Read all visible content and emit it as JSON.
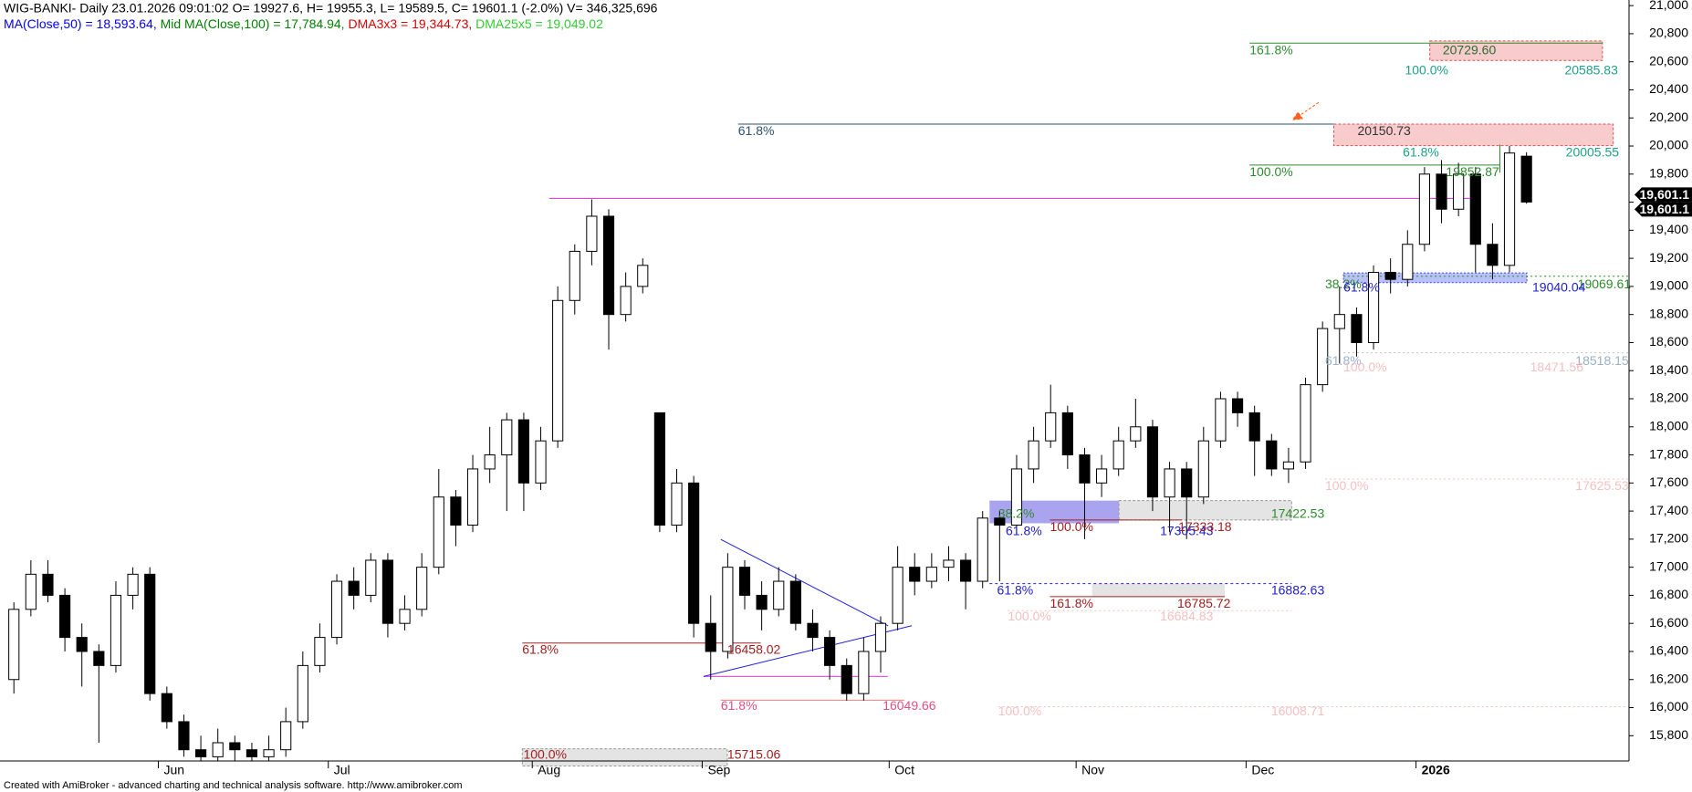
{
  "header": {
    "line1": "WIG-BANKI- Daily 23.01.2026 09:01:02 O= 19927.6, H= 19955.3, L= 19589.5, C= 19601.1 (-2.0%) V= 346,325,696",
    "indicators": [
      {
        "text": "MA(Close,50) = 18,593.64, ",
        "color": "#0000ff"
      },
      {
        "text": "Mid MA(Close,100) = 17,784.94, ",
        "color": "#008000"
      },
      {
        "text": "DMA3x3 = 19,344.73, ",
        "color": "#e00000"
      },
      {
        "text": "DMA25x5 = 19,049.02",
        "color": "#33cc33"
      }
    ]
  },
  "chart_data": {
    "type": "candlestick",
    "categories": [
      null,
      null,
      null,
      null,
      null,
      null,
      null,
      null,
      null,
      "Jun",
      null,
      null,
      null,
      null,
      null,
      null,
      null,
      null,
      null,
      "Jul",
      null,
      null,
      null,
      null,
      null,
      null,
      null,
      null,
      null,
      null,
      null,
      "Aug",
      null,
      null,
      null,
      null,
      null,
      null,
      null,
      null,
      null,
      "Sep",
      null,
      null,
      null,
      null,
      null,
      null,
      null,
      null,
      null,
      null,
      "Oct",
      null,
      null,
      null,
      null,
      null,
      null,
      null,
      null,
      null,
      null,
      "Nov",
      null,
      null,
      null,
      null,
      null,
      null,
      null,
      null,
      null,
      "Dec",
      null,
      null,
      null,
      null,
      null,
      null,
      null,
      null,
      null,
      "2026",
      null,
      null,
      null,
      null,
      null,
      null
    ],
    "open": [
      16200,
      16700,
      16950,
      16800,
      16500,
      16400,
      16300,
      16800,
      16950,
      16100,
      15900,
      15700,
      15650,
      15750,
      15700,
      15650,
      15700,
      15900,
      16300,
      16500,
      16900,
      16800,
      17050,
      16600,
      16700,
      17000,
      17500,
      17300,
      17700,
      17800,
      18050,
      17600,
      17900,
      18900,
      19250,
      19500,
      18800,
      19000,
      18100,
      17300,
      17600,
      16600,
      16400,
      17000,
      16800,
      16700,
      16900,
      16600,
      16500,
      16300,
      16100,
      16400,
      16600,
      17000,
      16900,
      17000,
      17050,
      16900,
      17350,
      17300,
      17700,
      17900,
      18100,
      17800,
      17600,
      17700,
      17900,
      18000,
      17500,
      17700,
      17500,
      17900,
      18200,
      18100,
      17900,
      17700,
      17750,
      18300,
      18700,
      18800,
      18600,
      19100,
      19050,
      19300,
      19800,
      19550,
      19800,
      19300,
      19150,
      19927.6
    ],
    "high": [
      16750,
      17050,
      17050,
      16850,
      16600,
      16450,
      16900,
      17000,
      17000,
      16150,
      15950,
      15800,
      15850,
      15800,
      15750,
      15800,
      16000,
      16400,
      16600,
      16950,
      17000,
      17100,
      17100,
      16800,
      17100,
      17700,
      17550,
      17800,
      18000,
      18100,
      18100,
      18000,
      19000,
      19300,
      19620,
      19550,
      19100,
      19200,
      18100,
      17700,
      17650,
      16800,
      17100,
      17050,
      16900,
      17000,
      16950,
      16700,
      16550,
      16350,
      16500,
      16650,
      17150,
      17100,
      17100,
      17150,
      17100,
      17400,
      17400,
      17800,
      18000,
      18300,
      18150,
      17850,
      17800,
      18000,
      18200,
      18050,
      17750,
      17750,
      18000,
      18250,
      18250,
      18150,
      17950,
      17850,
      18350,
      18750,
      19000,
      18850,
      19150,
      19200,
      19400,
      19850,
      19900,
      19880,
      19850,
      19450,
      20000,
      19955.3
    ],
    "low": [
      16100,
      16650,
      16750,
      16400,
      16150,
      15750,
      16250,
      16700,
      16050,
      15850,
      15650,
      15620,
      15620,
      15620,
      15620,
      15620,
      15650,
      15850,
      16250,
      16450,
      16700,
      16750,
      16500,
      16550,
      16650,
      16950,
      17150,
      17250,
      17600,
      17400,
      17400,
      17550,
      17850,
      18800,
      19150,
      18550,
      18750,
      18950,
      17250,
      17250,
      16500,
      16200,
      16350,
      16700,
      16550,
      16650,
      16550,
      16400,
      16200,
      16050,
      16050,
      16250,
      16550,
      16800,
      16850,
      16900,
      16700,
      16850,
      16900,
      17250,
      17600,
      17850,
      17700,
      17200,
      17500,
      17650,
      17850,
      17400,
      17250,
      17200,
      17450,
      17850,
      18000,
      17650,
      17650,
      17600,
      17700,
      18250,
      18450,
      18500,
      18550,
      18950,
      19000,
      19250,
      19450,
      19500,
      19100,
      19050,
      19100,
      19589.5
    ],
    "close": [
      16700,
      16950,
      16800,
      16500,
      16400,
      16300,
      16800,
      16950,
      16100,
      15900,
      15700,
      15650,
      15750,
      15700,
      15650,
      15700,
      15900,
      16300,
      16500,
      16900,
      16800,
      17050,
      16600,
      16700,
      17000,
      17500,
      17300,
      17700,
      17800,
      18050,
      17600,
      17900,
      18900,
      19250,
      19500,
      18800,
      19000,
      19150,
      17300,
      17600,
      16600,
      16400,
      17000,
      16800,
      16700,
      16900,
      16600,
      16500,
      16300,
      16100,
      16400,
      16600,
      17000,
      16900,
      17000,
      17050,
      16900,
      17350,
      17300,
      17700,
      17900,
      18100,
      17800,
      17600,
      17700,
      17900,
      18000,
      17500,
      17700,
      17500,
      17900,
      18200,
      18100,
      17900,
      17700,
      17750,
      18300,
      18700,
      18800,
      18600,
      19100,
      19050,
      19300,
      19800,
      19550,
      19800,
      19300,
      19150,
      19950,
      19601.1
    ],
    "ylim": [
      15620,
      21040
    ],
    "yticks": [
      {
        "value": 15800,
        "label": "15,800"
      },
      {
        "value": 16000,
        "label": "16,000"
      },
      {
        "value": 16200,
        "label": "16,200"
      },
      {
        "value": 16400,
        "label": "16,400"
      },
      {
        "value": 16600,
        "label": "16,600"
      },
      {
        "value": 16800,
        "label": "16,800"
      },
      {
        "value": 17000,
        "label": "17,000"
      },
      {
        "value": 17200,
        "label": "17,200"
      },
      {
        "value": 17400,
        "label": "17,400"
      },
      {
        "value": 17600,
        "label": "17,600"
      },
      {
        "value": 17800,
        "label": "17,800"
      },
      {
        "value": 18000,
        "label": "18,000"
      },
      {
        "value": 18200,
        "label": "18,200"
      },
      {
        "value": 18400,
        "label": "18,400"
      },
      {
        "value": 18600,
        "label": "18,600"
      },
      {
        "value": 18800,
        "label": "18,800"
      },
      {
        "value": 19000,
        "label": "19,000"
      },
      {
        "value": 19200,
        "label": "19,200"
      },
      {
        "value": 19400,
        "label": "19,400"
      },
      {
        "value": 19600,
        "label": "19,600"
      },
      {
        "value": 19800,
        "label": "19,800"
      },
      {
        "value": 20000,
        "label": "20,000"
      },
      {
        "value": 20200,
        "label": "20,200"
      },
      {
        "value": 20400,
        "label": "20,400"
      },
      {
        "value": 20600,
        "label": "20,600"
      },
      {
        "value": 20800,
        "label": "20,800"
      },
      {
        "value": 21000,
        "label": "21,000"
      }
    ],
    "last_price_labels": [
      {
        "value": 19601.1,
        "label": "19,601.1"
      },
      {
        "value": 19601.1,
        "label": "19,601.1"
      }
    ],
    "annotations": [
      {
        "text": "161.8%",
        "color": "#2e8b2e"
      },
      {
        "text": "20729.60",
        "color": "#2e6b2e"
      },
      {
        "text": "100.0%",
        "color": "#20a08a"
      },
      {
        "text": "20585.83",
        "color": "#20a08a"
      },
      {
        "text": "61.8%",
        "color": "#2f4f6f"
      },
      {
        "text": "20150.73",
        "color": "#333333"
      },
      {
        "text": "61.8%",
        "color": "#20a08a"
      },
      {
        "text": "20005.55",
        "color": "#20a08a"
      },
      {
        "text": "100.0%",
        "color": "#2e8b2e"
      },
      {
        "text": "19852.87",
        "color": "#2e8b2e"
      },
      {
        "text": "38.2%",
        "color": "#2e8b2e"
      },
      {
        "text": "61.8%",
        "color": "#2020d0"
      },
      {
        "text": "19069.61",
        "color": "#2e8b2e"
      },
      {
        "text": "19040.04",
        "color": "#2020d0"
      },
      {
        "text": "61.8%",
        "color": "#9ab0d0"
      },
      {
        "text": "100.0%",
        "color": "#f5c0c0"
      },
      {
        "text": "18518.15",
        "color": "#9ab0c0"
      },
      {
        "text": "18471.56",
        "color": "#f5c0c0"
      },
      {
        "text": "100.0%",
        "color": "#f5c0c0"
      },
      {
        "text": "17625.53",
        "color": "#f5c0c0"
      },
      {
        "text": "38.2%",
        "color": "#2e8b2e"
      },
      {
        "text": "17422.53",
        "color": "#2e8b2e"
      },
      {
        "text": "61.8%",
        "color": "#2020d0"
      },
      {
        "text": "100.0%",
        "color": "#a02020"
      },
      {
        "text": "17305.43",
        "color": "#2020d0"
      },
      {
        "text": "17333.18",
        "color": "#a02020"
      },
      {
        "text": "61.8%",
        "color": "#2020d0"
      },
      {
        "text": "16882.63",
        "color": "#2020d0"
      },
      {
        "text": "161.8%",
        "color": "#a02020"
      },
      {
        "text": "16785.72",
        "color": "#a02020"
      },
      {
        "text": "100.0%",
        "color": "#f5c0c0"
      },
      {
        "text": "16684.83",
        "color": "#f5c0c0"
      },
      {
        "text": "61.8%",
        "color": "#a02020"
      },
      {
        "text": "16458.02",
        "color": "#a02020"
      },
      {
        "text": "61.8%",
        "color": "#e05080"
      },
      {
        "text": "16049.66",
        "color": "#e05080"
      },
      {
        "text": "100.0%",
        "color": "#f5c0c0"
      },
      {
        "text": "16008.71",
        "color": "#f5c0c0"
      },
      {
        "text": "100.0%",
        "color": "#a02020"
      },
      {
        "text": "15715.06",
        "color": "#a02020"
      }
    ]
  },
  "footer": "Created with AmiBroker - advanced charting and technical analysis software. http://www.amibroker.com"
}
